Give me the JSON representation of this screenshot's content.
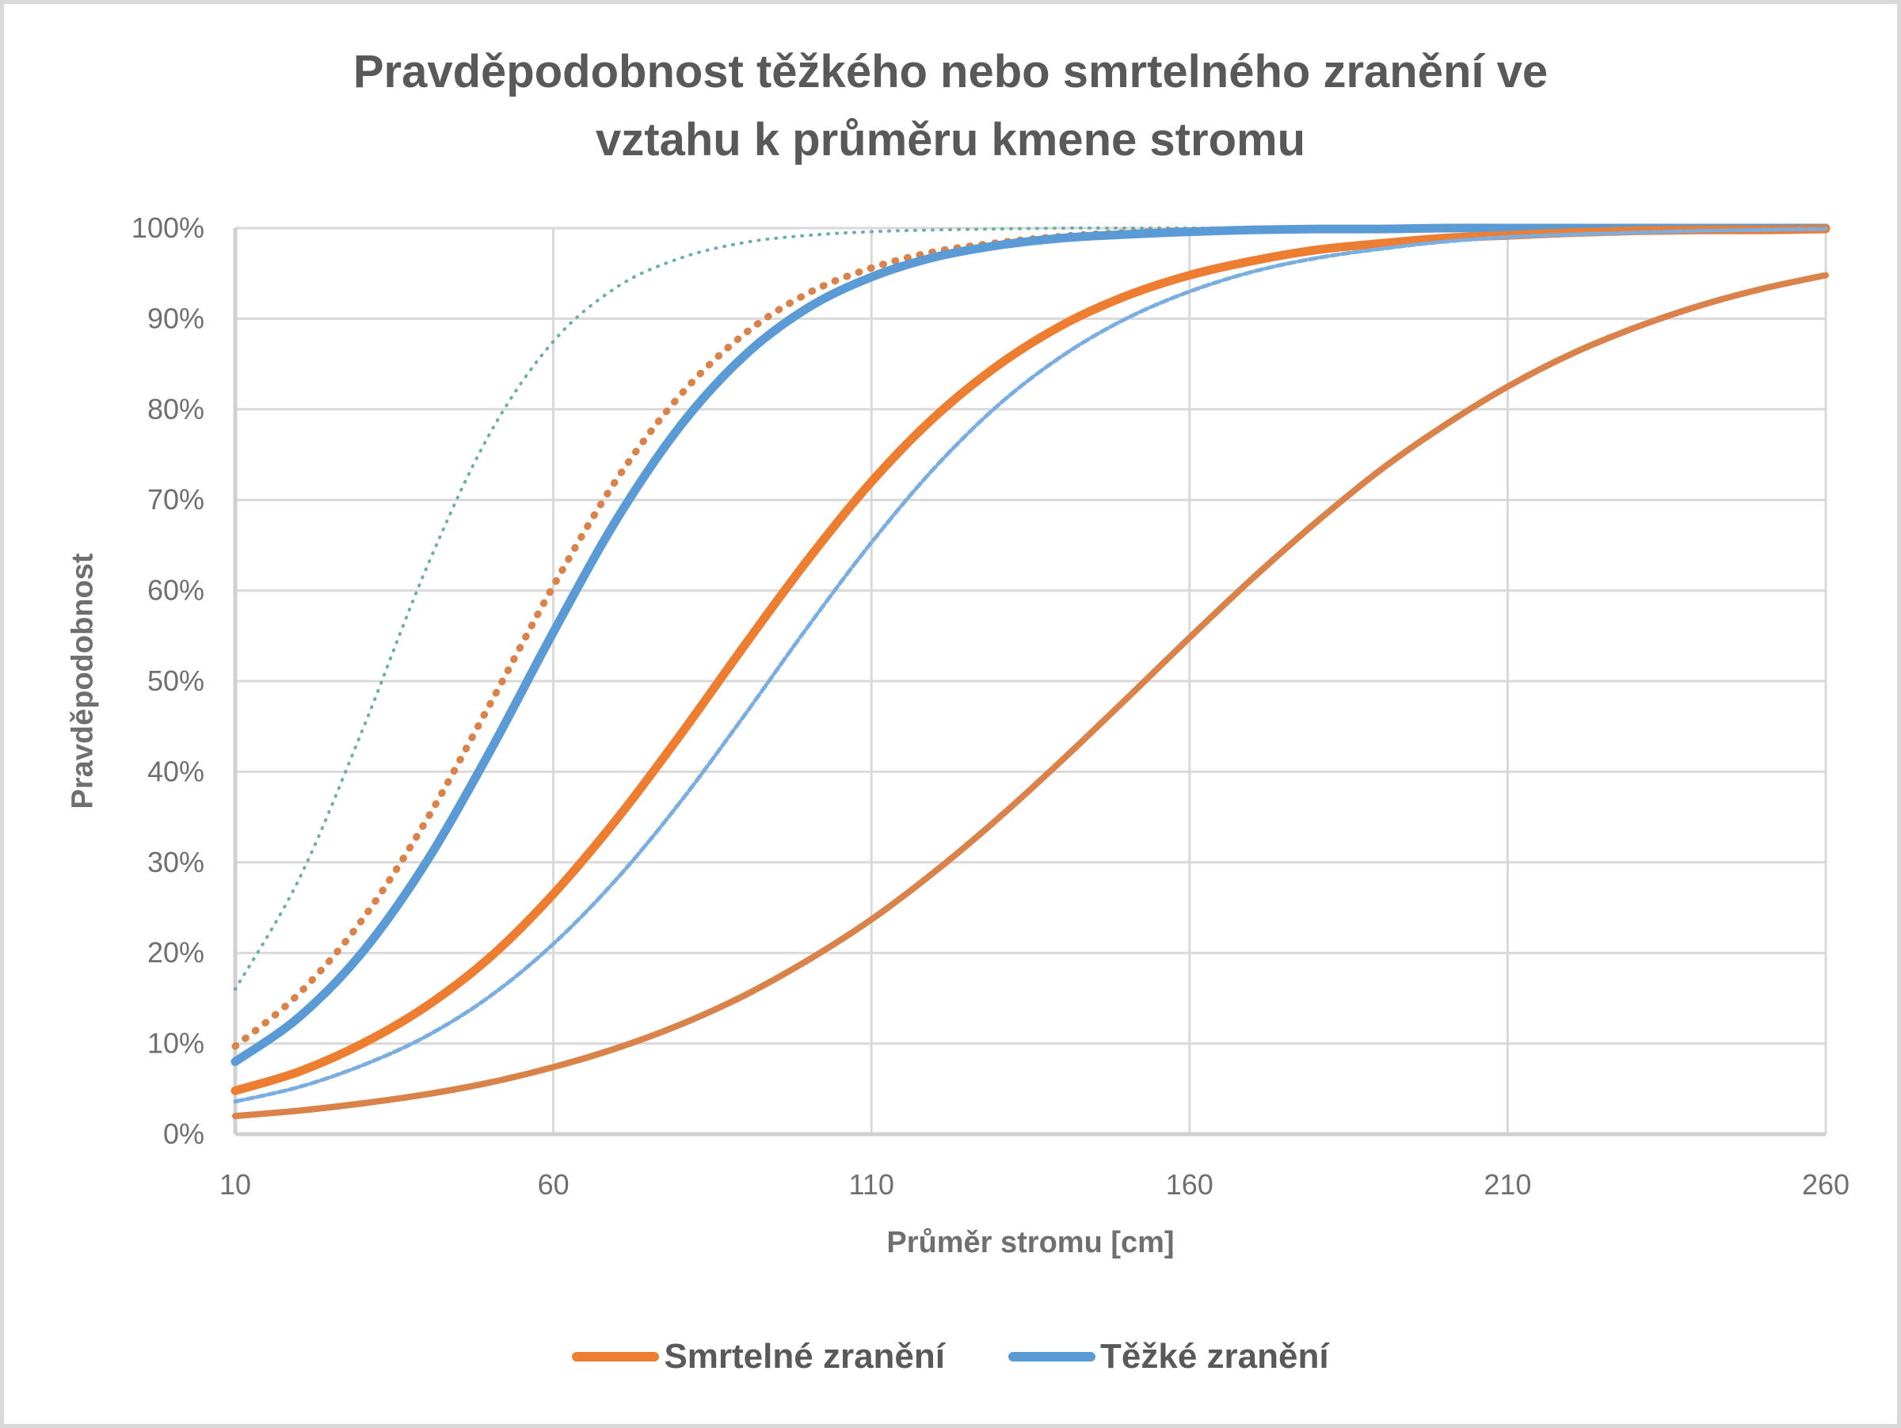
{
  "chart": {
    "title_line1": "Pravděpodobnost těžkého nebo smrtelného zranění ve",
    "title_line2": "vztahu k průměru kmene stromu",
    "ylabel": "Pravděpodobnost",
    "xlabel": "Průměr stromu [cm]",
    "legend": [
      {
        "label": "Smrtelné zranění",
        "color": "#ED7D31"
      },
      {
        "label": "Těžké zranění",
        "color": "#5B9BD5"
      }
    ],
    "y_ticks": [
      "0%",
      "10%",
      "20%",
      "30%",
      "40%",
      "50%",
      "60%",
      "70%",
      "80%",
      "90%",
      "100%"
    ],
    "x_ticks": [
      "10",
      "60",
      "110",
      "160",
      "210",
      "260"
    ]
  },
  "chart_data": {
    "type": "line",
    "title": "Pravděpodobnost těžkého nebo smrtelného zranění ve vztahu k průměru kmene stromu",
    "xlabel": "Průměr stromu [cm]",
    "ylabel": "Pravděpodobnost",
    "xlim": [
      10,
      260
    ],
    "ylim": [
      0,
      1
    ],
    "y_tick_format": "percent",
    "x_ticks": [
      10,
      60,
      110,
      160,
      210,
      260
    ],
    "y_ticks": [
      0,
      0.1,
      0.2,
      0.3,
      0.4,
      0.5,
      0.6,
      0.7,
      0.8,
      0.9,
      1.0
    ],
    "grid": true,
    "legend_position": "bottom",
    "legend_entries": [
      "Smrtelné zranění",
      "Těžké zranění"
    ],
    "x": [
      10,
      20,
      30,
      40,
      50,
      60,
      70,
      80,
      90,
      100,
      110,
      120,
      130,
      140,
      150,
      160,
      170,
      180,
      190,
      200,
      210,
      220,
      230,
      240,
      250,
      260
    ],
    "series": [
      {
        "name": "teal-dotted",
        "color": "#6BAFA8",
        "style": "dotted",
        "width": 4,
        "values": [
          0.16,
          0.281,
          0.446,
          0.624,
          0.773,
          0.875,
          0.935,
          0.967,
          0.984,
          0.992,
          0.996,
          0.998,
          0.999,
          1.0,
          1.0,
          1.0,
          1.0,
          1.0,
          1.0,
          1.0,
          1.0,
          1.0,
          1.0,
          1.0,
          1.0,
          1.0
        ]
      },
      {
        "name": "brown-dotted",
        "color": "#D9834A",
        "style": "dotted",
        "width": 9,
        "values": [
          0.097,
          0.155,
          0.237,
          0.346,
          0.474,
          0.605,
          0.723,
          0.816,
          0.883,
          0.928,
          0.956,
          0.974,
          0.984,
          0.991,
          0.995,
          0.997,
          0.998,
          0.999,
          0.999,
          1.0,
          1.0,
          1.0,
          1.0,
          1.0,
          1.0,
          1.0
        ]
      },
      {
        "name": "Těžké zranění",
        "color": "#5B9BD5",
        "style": "solid",
        "width": 11,
        "values": [
          0.08,
          0.129,
          0.201,
          0.3,
          0.422,
          0.554,
          0.679,
          0.782,
          0.859,
          0.912,
          0.946,
          0.968,
          0.981,
          0.989,
          0.993,
          0.996,
          0.998,
          0.999,
          0.999,
          1.0,
          1.0,
          1.0,
          1.0,
          1.0,
          1.0,
          1.0
        ]
      },
      {
        "name": "Smrtelné zranění",
        "color": "#ED7D31",
        "style": "solid",
        "width": 11,
        "values": [
          0.048,
          0.069,
          0.1,
          0.141,
          0.195,
          0.265,
          0.348,
          0.441,
          0.539,
          0.634,
          0.72,
          0.792,
          0.849,
          0.893,
          0.925,
          0.948,
          0.964,
          0.976,
          0.983,
          0.989,
          0.992,
          0.995,
          0.997,
          0.998,
          0.998,
          0.999
        ]
      },
      {
        "name": "blue-thin",
        "color": "#7AAEE0",
        "style": "dashed",
        "width": 5,
        "values": [
          0.036,
          0.052,
          0.076,
          0.108,
          0.152,
          0.21,
          0.282,
          0.367,
          0.462,
          0.56,
          0.653,
          0.736,
          0.805,
          0.859,
          0.9,
          0.93,
          0.952,
          0.967,
          0.977,
          0.985,
          0.99,
          0.993,
          0.995,
          0.997,
          0.998,
          0.999
        ]
      },
      {
        "name": "brown-solid",
        "color": "#D9834A",
        "style": "solid",
        "width": 8,
        "values": [
          0.02,
          0.026,
          0.034,
          0.044,
          0.057,
          0.074,
          0.095,
          0.121,
          0.153,
          0.192,
          0.237,
          0.29,
          0.349,
          0.413,
          0.48,
          0.548,
          0.614,
          0.676,
          0.733,
          0.782,
          0.825,
          0.861,
          0.89,
          0.914,
          0.933,
          0.948
        ]
      }
    ]
  }
}
